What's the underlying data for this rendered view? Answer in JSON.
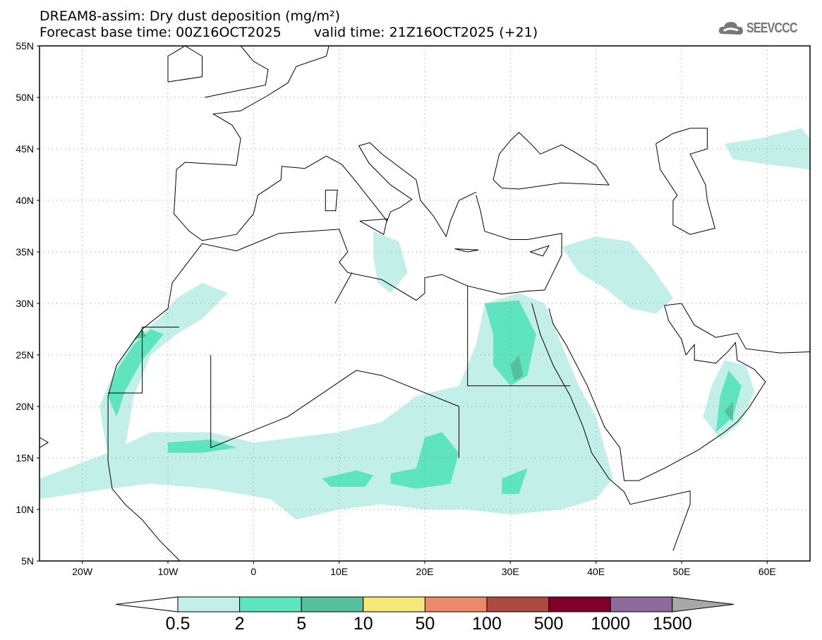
{
  "header": {
    "title": "DREAM8-assim: Dry dust deposition (mg/m²)",
    "base_time": "Forecast base time: 00Z16OCT2025",
    "valid_time": "valid time: 21Z16OCT2025 (+21)",
    "logo_text": "SEEVCCC"
  },
  "map": {
    "lat_labels": [
      "5N",
      "10N",
      "15N",
      "20N",
      "25N",
      "30N",
      "35N",
      "40N",
      "45N",
      "50N",
      "55N"
    ],
    "lon_labels": [
      "20W",
      "10W",
      "0",
      "10E",
      "20E",
      "30E",
      "40E",
      "50E",
      "60E"
    ],
    "extent": {
      "lon": [
        -25,
        65
      ],
      "lat": [
        5,
        55
      ]
    }
  },
  "legend": {
    "labels": [
      "0.5",
      "2",
      "5",
      "10",
      "50",
      "100",
      "500",
      "1000",
      "1500"
    ],
    "colors": [
      "#c2f0e9",
      "#5ee5bd",
      "#55bf9e",
      "#f7e67a",
      "#ec8a68",
      "#ad4a40",
      "#81002a",
      "#8d6a9b"
    ],
    "under_color": "#ffffff",
    "over_color": "#a8a8a8"
  }
}
